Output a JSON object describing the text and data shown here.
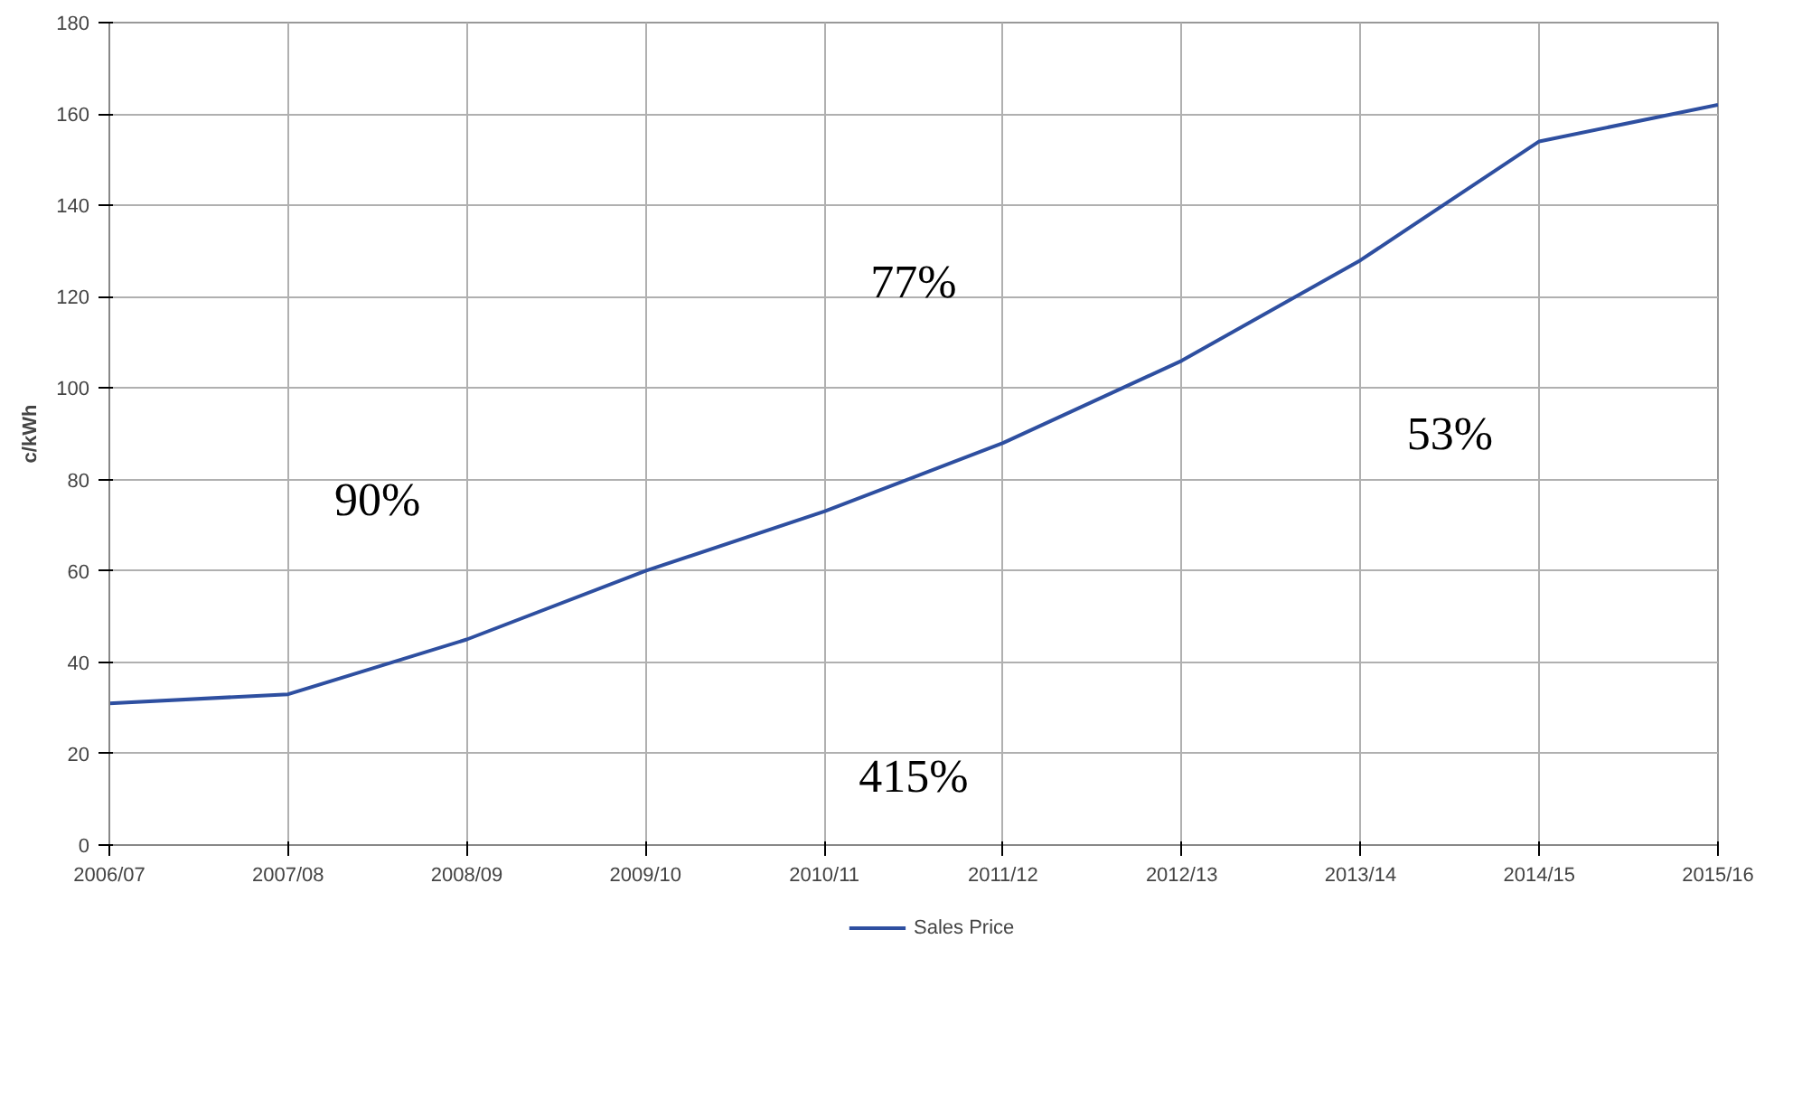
{
  "chart_data": {
    "type": "line",
    "ylabel": "c/kWh",
    "categories": [
      "2006/07",
      "2007/08",
      "2008/09",
      "2009/10",
      "2010/11",
      "2011/12",
      "2012/13",
      "2013/14",
      "2014/15",
      "2015/16"
    ],
    "series": [
      {
        "name": "Sales Price",
        "color": "#2e4fa0",
        "values": [
          31,
          33,
          45,
          60,
          73,
          88,
          106,
          128,
          154,
          162
        ]
      }
    ],
    "ylim": [
      0,
      180
    ],
    "yticks": [
      0,
      20,
      40,
      60,
      80,
      100,
      120,
      140,
      160,
      180
    ],
    "grid": true,
    "legend": "bottom",
    "marker": "none",
    "line_style": "solid",
    "annotations": [
      "90%",
      "77%",
      "53%",
      "415%"
    ]
  }
}
